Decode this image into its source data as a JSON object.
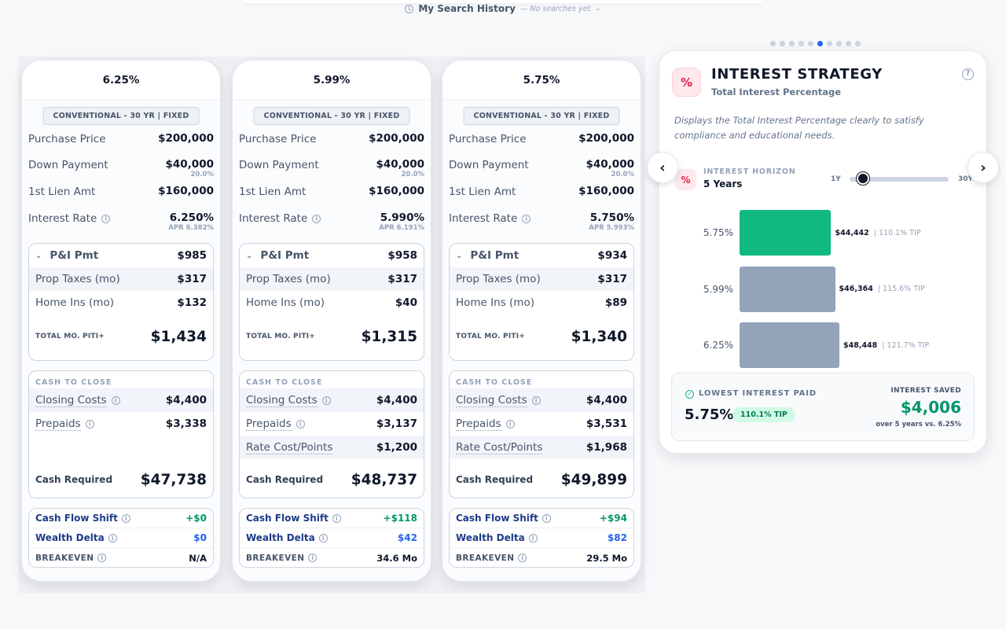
{
  "history": {
    "title": "My Search History",
    "subtitle": "— No searches yet"
  },
  "cards": [
    {
      "rate": "6.25%",
      "loan_type": "CONVENTIONAL - 30 YR | FIXED",
      "purchase_label": "Purchase Price",
      "purchase": "$200,000",
      "down_label": "Down Payment",
      "down": "$40,000",
      "down_pct": "20.0%",
      "lien_label": "1st Lien Amt",
      "lien": "$160,000",
      "rate_label": "Interest Rate",
      "rate_val": "6.250%",
      "apr": "APR 6.382%",
      "pi_label": "P&I Pmt",
      "pi": "$985",
      "taxes_label": "Prop Taxes (mo)",
      "taxes": "$317",
      "ins_label": "Home Ins (mo)",
      "ins": "$132",
      "total_label": "TOTAL MO. PITI+",
      "total": "$1,434",
      "cash_title": "CASH TO CLOSE",
      "closing_label": "Closing Costs",
      "closing": "$4,400",
      "prepaids_label": "Prepaids",
      "prepaids": "$3,338",
      "points_label": "",
      "points": "",
      "cash_req_label": "Cash Required",
      "cash_req": "$47,738",
      "cfs_label": "Cash Flow Shift",
      "cfs": "+$0",
      "wd_label": "Wealth Delta",
      "wd": "$0",
      "be_label": "BREAKEVEN",
      "be": "N/A"
    },
    {
      "rate": "5.99%",
      "loan_type": "CONVENTIONAL - 30 YR | FIXED",
      "purchase_label": "Purchase Price",
      "purchase": "$200,000",
      "down_label": "Down Payment",
      "down": "$40,000",
      "down_pct": "20.0%",
      "lien_label": "1st Lien Amt",
      "lien": "$160,000",
      "rate_label": "Interest Rate",
      "rate_val": "5.990%",
      "apr": "APR 6.191%",
      "pi_label": "P&I Pmt",
      "pi": "$958",
      "taxes_label": "Prop Taxes (mo)",
      "taxes": "$317",
      "ins_label": "Home Ins (mo)",
      "ins": "$40",
      "total_label": "TOTAL MO. PITI+",
      "total": "$1,315",
      "cash_title": "CASH TO CLOSE",
      "closing_label": "Closing Costs",
      "closing": "$4,400",
      "prepaids_label": "Prepaids",
      "prepaids": "$3,137",
      "points_label": "Rate Cost/Points",
      "points": "$1,200",
      "cash_req_label": "Cash Required",
      "cash_req": "$48,737",
      "cfs_label": "Cash Flow Shift",
      "cfs": "+$118",
      "wd_label": "Wealth Delta",
      "wd": "$42",
      "be_label": "BREAKEVEN",
      "be": "34.6 Mo"
    },
    {
      "rate": "5.75%",
      "loan_type": "CONVENTIONAL - 30 YR | FIXED",
      "purchase_label": "Purchase Price",
      "purchase": "$200,000",
      "down_label": "Down Payment",
      "down": "$40,000",
      "down_pct": "20.0%",
      "lien_label": "1st Lien Amt",
      "lien": "$160,000",
      "rate_label": "Interest Rate",
      "rate_val": "5.750%",
      "apr": "APR 5.993%",
      "pi_label": "P&I Pmt",
      "pi": "$934",
      "taxes_label": "Prop Taxes (mo)",
      "taxes": "$317",
      "ins_label": "Home Ins (mo)",
      "ins": "$89",
      "total_label": "TOTAL MO. PITI+",
      "total": "$1,340",
      "cash_title": "CASH TO CLOSE",
      "closing_label": "Closing Costs",
      "closing": "$4,400",
      "prepaids_label": "Prepaids",
      "prepaids": "$3,531",
      "points_label": "Rate Cost/Points",
      "points": "$1,968",
      "cash_req_label": "Cash Required",
      "cash_req": "$49,899",
      "cfs_label": "Cash Flow Shift",
      "cfs": "+$94",
      "wd_label": "Wealth Delta",
      "wd": "$82",
      "be_label": "BREAKEVEN",
      "be": "29.5 Mo"
    }
  ],
  "carousel": {
    "dot_count": 10,
    "active_index": 5
  },
  "strategy": {
    "badge": "%",
    "title": "INTEREST STRATEGY",
    "subtitle": "Total Interest Percentage",
    "description": "Displays the Total Interest Percentage clearly to satisfy compliance and educational needs.",
    "horizon_label": "INTEREST HORIZON",
    "horizon_value": "5 Years",
    "slider_min": "1Y",
    "slider_max": "30Y",
    "slider_years": 5,
    "summary_label": "LOWEST INTEREST PAID",
    "summary_rate": "5.75%",
    "summary_tip": "110.1% TIP",
    "saved_label": "INTEREST SAVED",
    "saved_value": "$4,006",
    "saved_note": "over 5 years vs. 6.25%"
  },
  "chart_data": {
    "type": "bar",
    "orientation": "horizontal",
    "categories": [
      "5.75%",
      "5.99%",
      "6.25%"
    ],
    "values": [
      44442,
      46364,
      48448
    ],
    "value_labels": [
      "$44,442",
      "$46,364",
      "$48,448"
    ],
    "tips": [
      "| 110.1% TIP",
      "| 115.6% TIP",
      "| 121.7% TIP"
    ],
    "colors": [
      "#10b981",
      "#94a3b8",
      "#94a3b8"
    ]
  },
  "colors": {
    "accent": "#2563eb",
    "positive": "#059669",
    "badge": "#e11d48"
  }
}
